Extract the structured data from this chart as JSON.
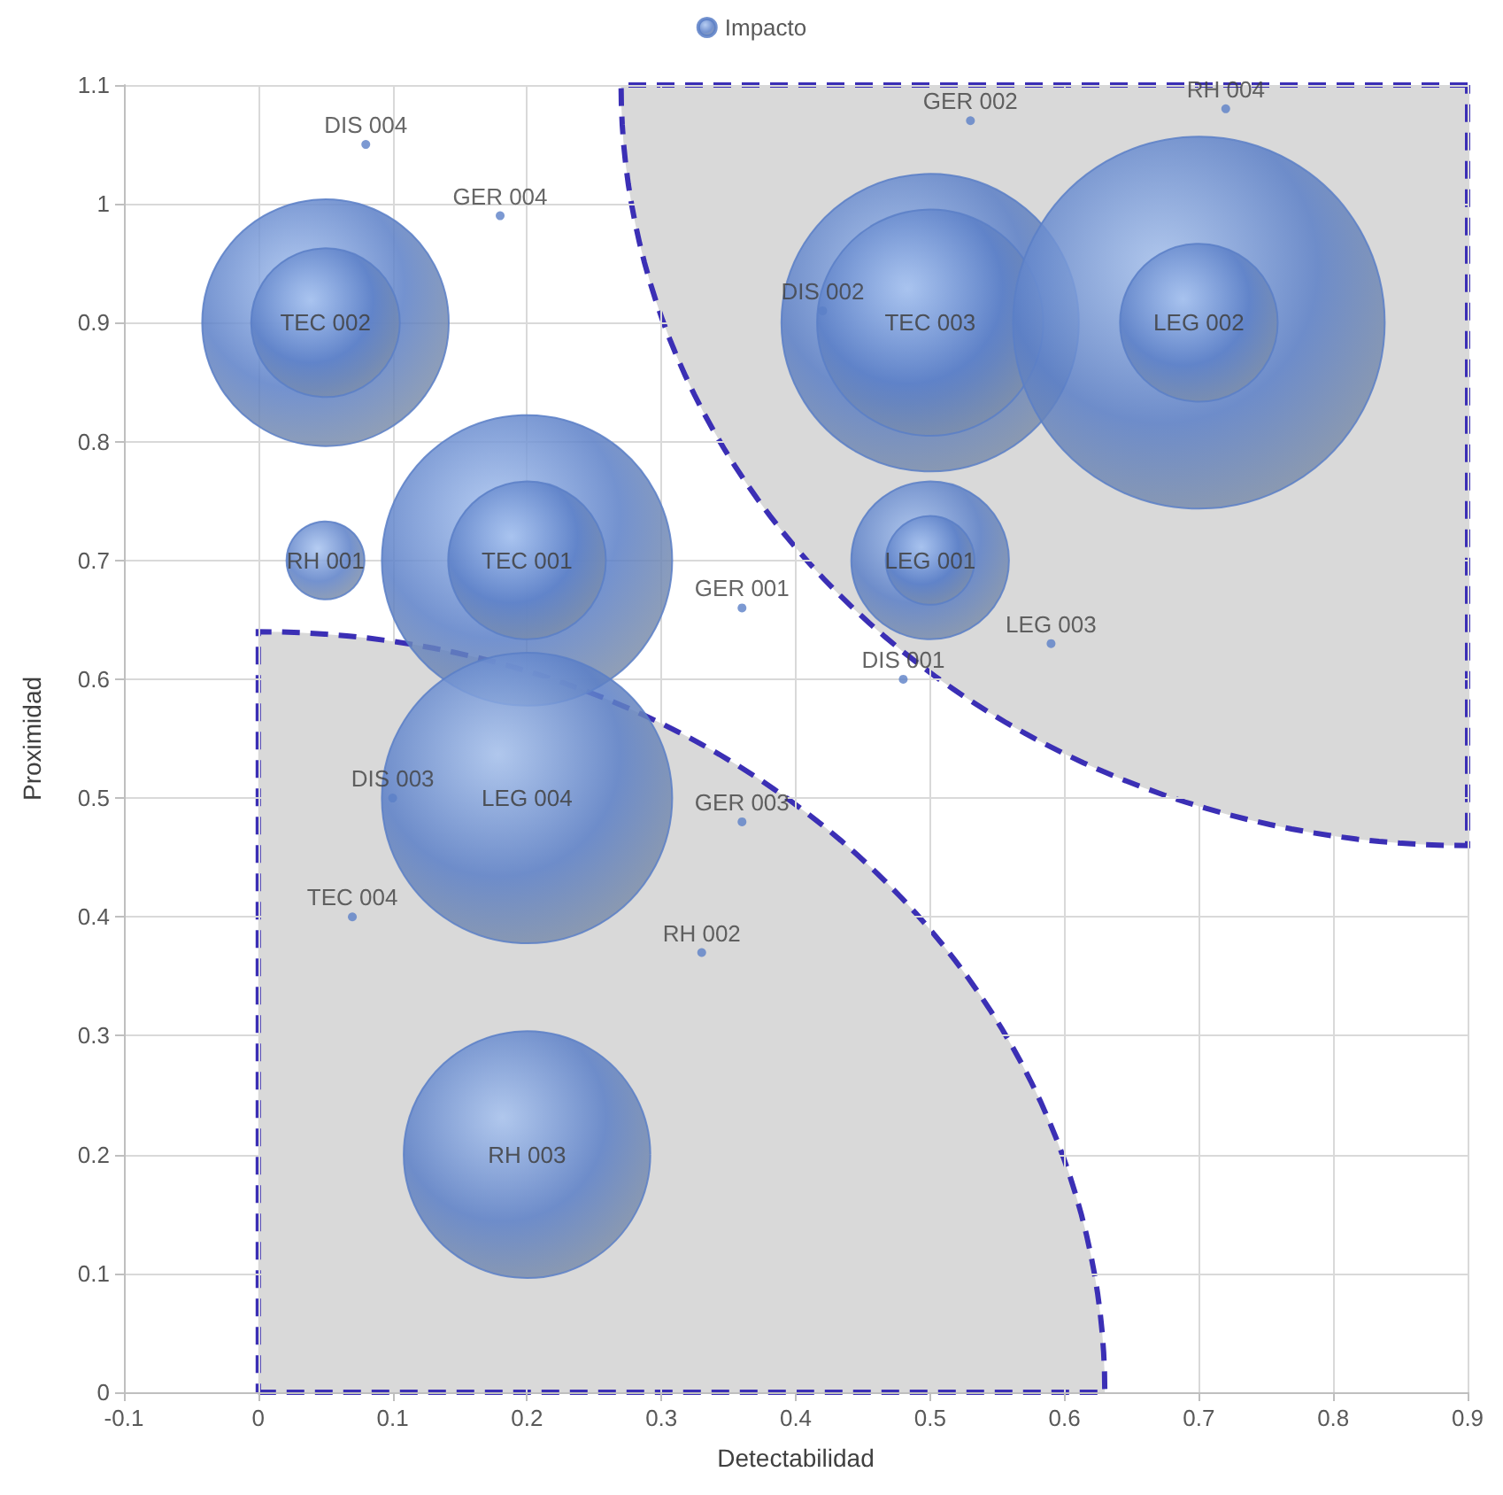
{
  "chart_data": {
    "type": "bubble",
    "xlabel": "Detectabilidad",
    "ylabel": "Proximidad",
    "series": [
      {
        "name": "Impacto",
        "color": "#5b7fc7",
        "x": [
          0.05,
          0.05,
          0.05,
          0.2,
          0.2,
          0.2,
          0.2,
          0.5,
          0.5,
          0.5,
          0.5,
          0.7,
          0.7
        ],
        "values": [
          0.9,
          0.9,
          0.7,
          0.7,
          0.7,
          0.5,
          0.2,
          0.9,
          0.9,
          0.7,
          0.7,
          0.9,
          0.9
        ],
        "sizes": [
          0.44,
          0.16,
          0.044,
          0.61,
          0.18,
          0.61,
          0.44,
          0.64,
          0.37,
          0.18,
          0.057,
          1,
          0.18
        ],
        "value_labels": [
          null,
          "TEC 002",
          "RH 001",
          null,
          "TEC 001",
          "LEG 004",
          "RH 003",
          null,
          "TEC 003",
          null,
          "LEG 001",
          null,
          "LEG 002"
        ]
      },
      {
        "type": "scatter",
        "color": "#5b7fc7",
        "marker": "circle",
        "x": [
          0.08,
          0.18,
          0.53,
          0.72,
          0.42,
          0.36,
          0.48,
          0.59,
          0.1,
          0.36,
          0.07,
          0.33
        ],
        "values": [
          1.05,
          0.99,
          1.07,
          1.08,
          0.91,
          0.66,
          0.6,
          0.63,
          0.5,
          0.48,
          0.4,
          0.37
        ],
        "value_labels": [
          "DIS 004",
          "GER 004",
          "GER 002",
          "RH 004",
          "DIS 002",
          "GER 001",
          "DIS 001",
          "LEG 003",
          "DIS 003",
          "GER 003",
          "TEC 004",
          "RH 002"
        ]
      }
    ],
    "xlim": [
      -0.1,
      0.9
    ],
    "xticks": [
      -0.1,
      0,
      0.1,
      0.2,
      0.3,
      0.4,
      0.5,
      0.6,
      0.7,
      0.8,
      0.9
    ],
    "ylim": [
      0,
      1.1
    ],
    "yticks": [
      0,
      0.1,
      0.2,
      0.3,
      0.4,
      0.5,
      0.6,
      0.7,
      0.8,
      0.9,
      1,
      1.1
    ],
    "grid": true,
    "legend": "top"
  }
}
